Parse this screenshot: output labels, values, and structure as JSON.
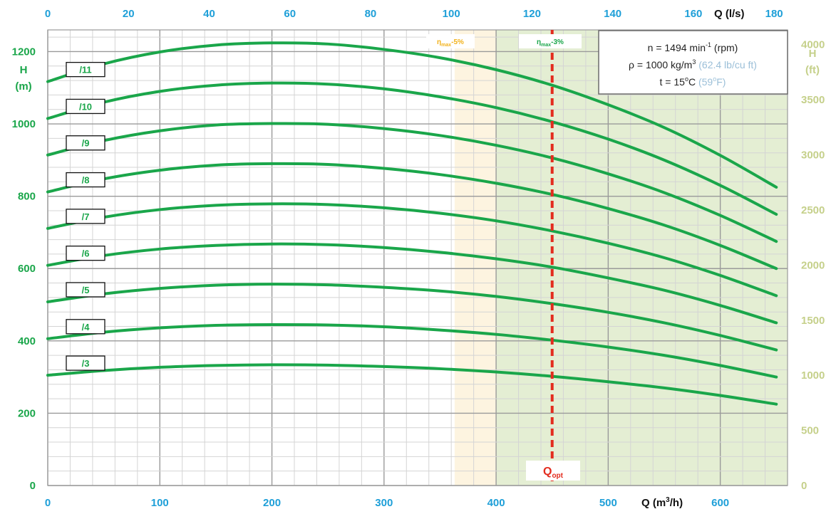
{
  "chart_data": {
    "type": "line",
    "x_axis": {
      "label_main": "Q (m",
      "label_sup": "3",
      "label_tail": "/h)",
      "range": [
        0,
        660
      ],
      "ticks": [
        0,
        100,
        200,
        300,
        400,
        500,
        600
      ]
    },
    "x2_axis": {
      "label": "Q (l/s)",
      "ticks": [
        0,
        20,
        40,
        60,
        80,
        100,
        120,
        140,
        160,
        180
      ]
    },
    "y_axis": {
      "label_line1": "H",
      "label_line2": "(m)",
      "range": [
        0,
        1260
      ],
      "ticks": [
        0,
        200,
        400,
        600,
        800,
        1000,
        1200
      ]
    },
    "y2_axis": {
      "label_line1": "H",
      "label_line2": "(ft)",
      "ticks": [
        0,
        500,
        1000,
        1500,
        2000,
        2500,
        3000,
        3500,
        4000
      ]
    },
    "series": [
      {
        "name": "/3",
        "x": [
          0,
          50,
          100,
          150,
          200,
          250,
          300,
          350,
          400,
          450,
          500,
          550,
          600,
          650
        ],
        "y": [
          305,
          318,
          327,
          332,
          334,
          333,
          329,
          323,
          314,
          302,
          287,
          270,
          249,
          225
        ]
      },
      {
        "name": "/4",
        "x": [
          0,
          50,
          100,
          150,
          200,
          250,
          300,
          350,
          400,
          450,
          500,
          550,
          600,
          650
        ],
        "y": [
          406,
          424,
          436,
          443,
          445,
          444,
          439,
          430,
          418,
          402,
          383,
          360,
          332,
          300
        ]
      },
      {
        "name": "/5",
        "x": [
          0,
          50,
          100,
          150,
          200,
          250,
          300,
          350,
          400,
          450,
          500,
          550,
          600,
          650
        ],
        "y": [
          508,
          530,
          545,
          554,
          557,
          555,
          548,
          538,
          523,
          503,
          479,
          450,
          415,
          375
        ]
      },
      {
        "name": "/6",
        "x": [
          0,
          50,
          100,
          150,
          200,
          250,
          300,
          350,
          400,
          450,
          500,
          550,
          600,
          650
        ],
        "y": [
          609,
          636,
          654,
          664,
          668,
          666,
          658,
          645,
          627,
          604,
          574,
          540,
          498,
          450
        ]
      },
      {
        "name": "/7",
        "x": [
          0,
          50,
          100,
          150,
          200,
          250,
          300,
          350,
          400,
          450,
          500,
          550,
          600,
          650
        ],
        "y": [
          711,
          742,
          763,
          775,
          779,
          777,
          768,
          753,
          732,
          704,
          670,
          630,
          581,
          525
        ]
      },
      {
        "name": "/8",
        "x": [
          0,
          50,
          100,
          150,
          200,
          250,
          300,
          350,
          400,
          450,
          500,
          550,
          600,
          650
        ],
        "y": [
          812,
          848,
          872,
          886,
          890,
          888,
          877,
          860,
          836,
          805,
          766,
          720,
          664,
          600
        ]
      },
      {
        "name": "/9",
        "x": [
          0,
          50,
          100,
          150,
          200,
          250,
          300,
          350,
          400,
          450,
          500,
          550,
          600,
          650
        ],
        "y": [
          914,
          954,
          981,
          997,
          1001,
          999,
          987,
          968,
          941,
          906,
          862,
          810,
          747,
          675
        ]
      },
      {
        "name": "/10",
        "x": [
          0,
          50,
          100,
          150,
          200,
          250,
          300,
          350,
          400,
          450,
          500,
          550,
          600,
          650
        ],
        "y": [
          1015,
          1060,
          1090,
          1107,
          1113,
          1110,
          1097,
          1075,
          1045,
          1006,
          958,
          900,
          830,
          750
        ]
      },
      {
        "name": "/11",
        "x": [
          0,
          50,
          100,
          150,
          200,
          250,
          300,
          350,
          400,
          450,
          500,
          550,
          600,
          650
        ],
        "y": [
          1117,
          1166,
          1199,
          1218,
          1224,
          1221,
          1206,
          1183,
          1150,
          1107,
          1053,
          990,
          913,
          825
        ]
      }
    ],
    "zones": [
      {
        "label_main": "η",
        "label_sub": "max",
        "label_tail": "-5%",
        "x_from": 363,
        "x_to": 400,
        "color": "#fdf4e0",
        "label_color": "#f2b21b"
      },
      {
        "label_main": "η",
        "label_sub": "max",
        "label_tail": "-3%",
        "x_from": 400,
        "x_to": 660,
        "color": "#e4eed3",
        "label_color": "#1aa64a"
      }
    ],
    "q_opt": {
      "x": 450,
      "label_main": "Q",
      "label_sub": "opt",
      "color": "#e32c1e"
    },
    "grid": true
  },
  "info_box": {
    "line1_a": "n = 1494 min",
    "line1_sup": "-1",
    "line1_b": " (rpm)",
    "line2_a": "ρ = 1000 kg/m",
    "line2_sup": "3",
    "line2_b": " (62.4 lb/cu ft)",
    "line3_a": "t = 15",
    "line3_sup": "o",
    "line3_b": "C",
    "line3_c": " (59",
    "line3_sup2": "o",
    "line3_d": "F)"
  },
  "colors": {
    "curve": "#1aa64a",
    "left_axis": "#1aa64a",
    "x_axis": "#1e9fd8",
    "right_axis": "#c5d08a",
    "q_opt": "#e32c1e",
    "zone_5": "#fdf4e0",
    "zone_3": "#e4eed3"
  }
}
